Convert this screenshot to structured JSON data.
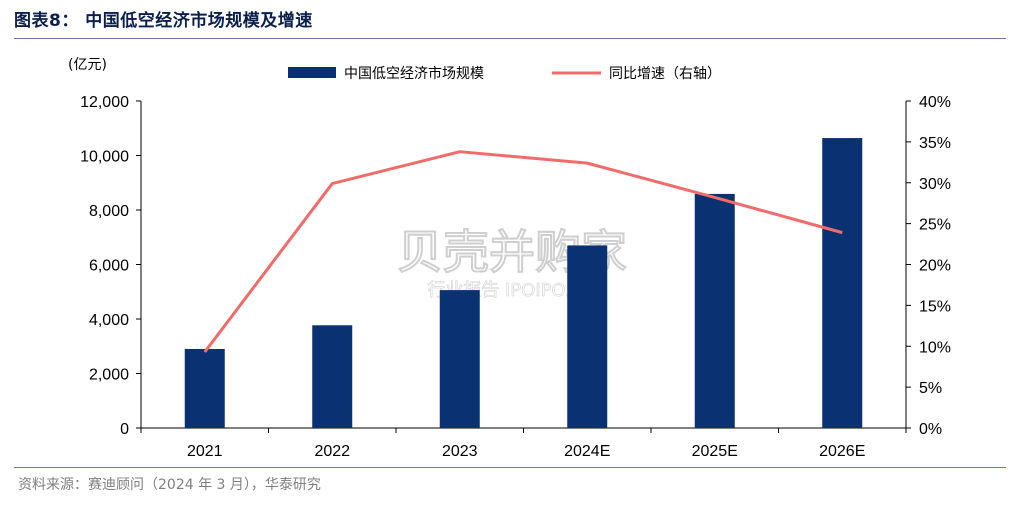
{
  "figure": {
    "title": "图表8：  中国低空经济市场规模及增速",
    "source": "资料来源：赛迪顾问（2024 年 3 月），华泰研究",
    "watermark_main": "贝壳并购家",
    "watermark_sub": "行业报告 IPOIPO.CN"
  },
  "chart_data": {
    "type": "bar",
    "categories": [
      "2021",
      "2022",
      "2023",
      "2024E",
      "2025E",
      "2026E"
    ],
    "series": [
      {
        "name": "中国低空经济市场规模",
        "type": "bar",
        "axis": "left",
        "values": [
          2900,
          3770,
          5060,
          6700,
          8590,
          10640
        ],
        "color": "#0a3171"
      },
      {
        "name": "同比增速（右轴）",
        "type": "line",
        "axis": "right",
        "values": [
          9.3,
          29.9,
          33.8,
          32.4,
          28.2,
          23.9
        ],
        "color": "#f26b6b"
      }
    ],
    "ylabel": "(亿元)",
    "ylim": [
      0,
      12000
    ],
    "y_ticks": [
      "0",
      "2,000",
      "4,000",
      "6,000",
      "8,000",
      "10,000",
      "12,000"
    ],
    "y2lim": [
      0,
      40
    ],
    "y2_ticks": [
      "0%",
      "5%",
      "10%",
      "15%",
      "20%",
      "25%",
      "30%",
      "35%",
      "40%"
    ],
    "legend_position": "top",
    "grid": false
  }
}
